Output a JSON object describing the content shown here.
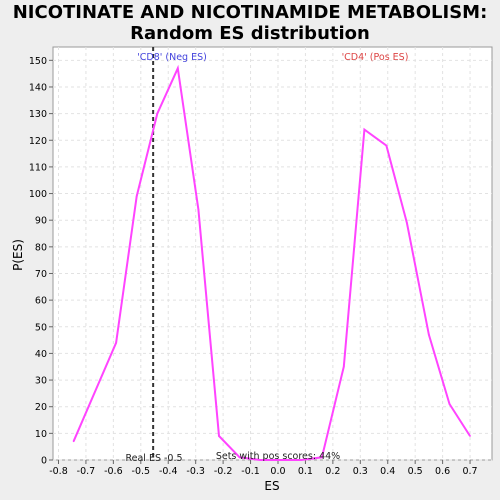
{
  "title_line1": "NICOTINATE AND NICOTINAMIDE METABOLISM:",
  "title_line2": "Random ES distribution",
  "chart_data": {
    "type": "line",
    "xlabel": "ES",
    "ylabel": "P(ES)",
    "xlim": [
      -0.82,
      0.78
    ],
    "ylim": [
      0,
      155
    ],
    "xticks": [
      -0.8,
      -0.7,
      -0.6,
      -0.5,
      -0.4,
      -0.3,
      -0.2,
      -0.1,
      0.0,
      0.1,
      0.2,
      0.3,
      0.4,
      0.5,
      0.6,
      0.7
    ],
    "xtick_labels": [
      "-0.8",
      "-0.7",
      "-0.6",
      "-0.5",
      "-0.4",
      "-0.3",
      "-0.2",
      "-0.1",
      "0.0",
      "0.1",
      "0.2",
      "0.3",
      "0.4",
      "0.5",
      "0.6",
      "0.7"
    ],
    "yticks": [
      0,
      10,
      20,
      30,
      40,
      50,
      60,
      70,
      80,
      90,
      100,
      110,
      120,
      130,
      140,
      150
    ],
    "ytick_labels": [
      "0",
      "10",
      "20",
      "30",
      "40",
      "50",
      "60",
      "70",
      "80",
      "90",
      "100",
      "110",
      "120",
      "130",
      "140",
      "150"
    ],
    "grid": true,
    "series": [
      {
        "color": "#ff44ff",
        "x": [
          -0.745,
          -0.59,
          -0.515,
          -0.44,
          -0.365,
          -0.29,
          -0.215,
          -0.14,
          -0.065,
          0.01,
          0.085,
          0.16,
          0.24,
          0.315,
          0.395,
          0.47,
          0.55,
          0.625,
          0.7
        ],
        "y": [
          7,
          44,
          99,
          130,
          147,
          94,
          9,
          1,
          0,
          0,
          0,
          1,
          35,
          124,
          118,
          89,
          47,
          21,
          9
        ]
      }
    ],
    "vline": {
      "x": -0.455,
      "color": "#333333",
      "label": "Real ES -0.5"
    },
    "annotations": {
      "neg_label": "'CD8' (Neg ES)",
      "neg_color": "#4444dd",
      "pos_label": "'CD4' (Pos ES)",
      "pos_color": "#dd4444",
      "pos_scores": "Sets with pos scores: 44%"
    }
  }
}
